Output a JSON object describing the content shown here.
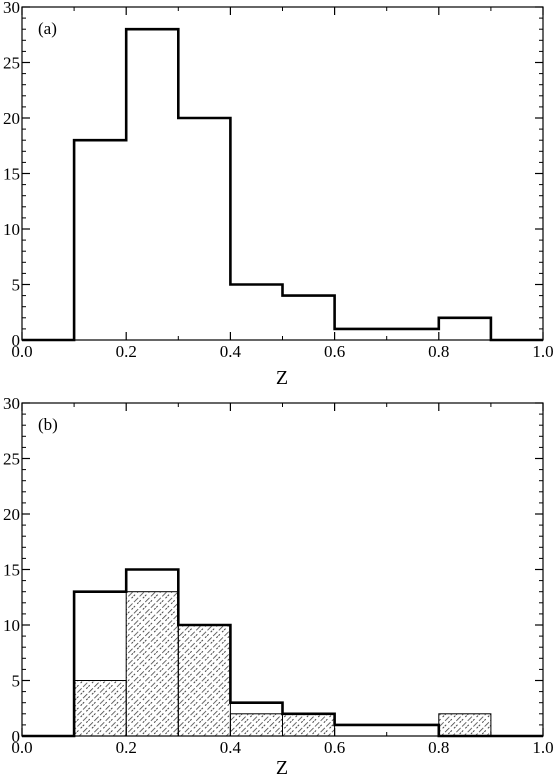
{
  "chart_data": [
    {
      "type": "bar",
      "panel_label": "(a)",
      "xlabel": "Z",
      "ylabel": "",
      "xlim": [
        0.0,
        1.0
      ],
      "ylim": [
        0,
        30
      ],
      "x_ticks": [
        "0.0",
        "0.2",
        "0.4",
        "0.6",
        "0.8",
        "1.0"
      ],
      "y_ticks": [
        "0",
        "5",
        "10",
        "15",
        "20",
        "25",
        "30"
      ],
      "bin_edges": [
        0.0,
        0.1,
        0.2,
        0.3,
        0.4,
        0.5,
        0.6,
        0.7,
        0.8,
        0.9,
        1.0
      ],
      "series": [
        {
          "style": "outline",
          "values": [
            0,
            18,
            28,
            20,
            5,
            4,
            1,
            1,
            2,
            0
          ]
        }
      ],
      "grid": false
    },
    {
      "type": "bar",
      "panel_label": "(b)",
      "xlabel": "Z",
      "ylabel": "",
      "xlim": [
        0.0,
        1.0
      ],
      "ylim": [
        0,
        30
      ],
      "x_ticks": [
        "0.0",
        "0.2",
        "0.4",
        "0.6",
        "0.8",
        "1.0"
      ],
      "y_ticks": [
        "0",
        "5",
        "10",
        "15",
        "20",
        "25",
        "30"
      ],
      "bin_edges": [
        0.0,
        0.1,
        0.2,
        0.3,
        0.4,
        0.5,
        0.6,
        0.7,
        0.8,
        0.9,
        1.0
      ],
      "series": [
        {
          "style": "outline",
          "values": [
            0,
            13,
            15,
            10,
            3,
            2,
            1,
            1,
            0,
            0
          ]
        },
        {
          "style": "hatched",
          "values": [
            0,
            5,
            13,
            10,
            2,
            2,
            0,
            0,
            2,
            0
          ]
        }
      ],
      "grid": false
    }
  ]
}
